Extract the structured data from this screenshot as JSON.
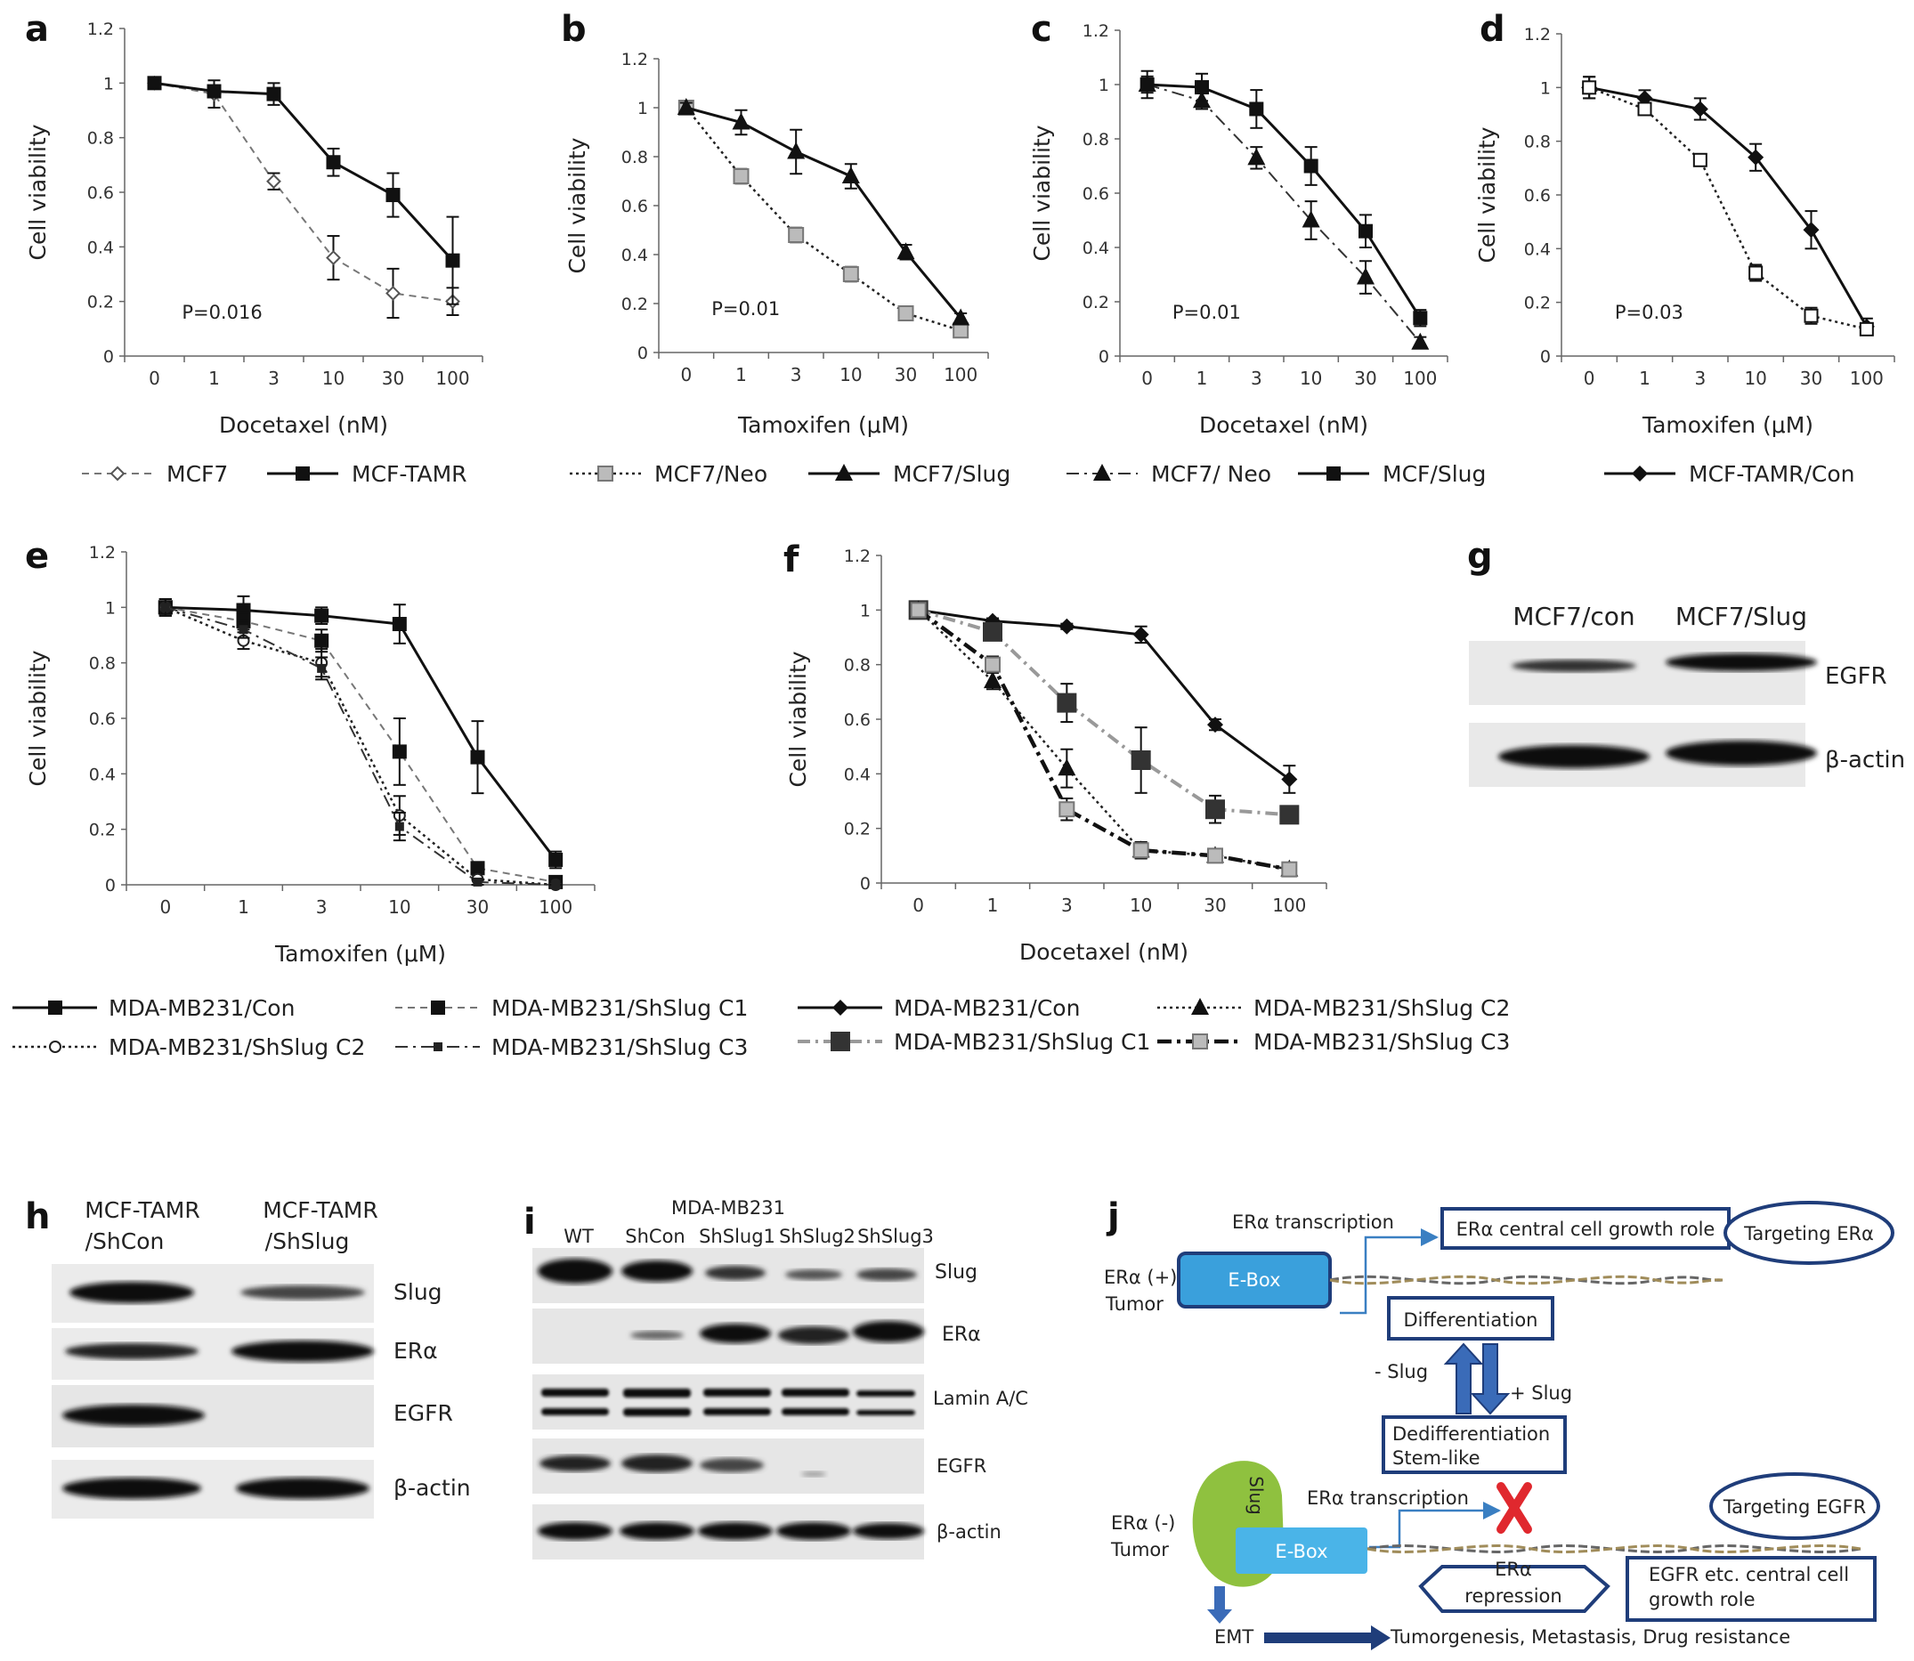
{
  "panel_letters": {
    "a": "a",
    "b": "b",
    "c": "c",
    "d": "d",
    "e": "e",
    "f": "f",
    "g": "g",
    "h": "h",
    "i": "i",
    "j": "j"
  },
  "chart_data": [
    {
      "id": "a",
      "type": "line",
      "ylabel": "Cell viability",
      "xlabel": "Docetaxel (nM)",
      "categories": [
        "0",
        "1",
        "3",
        "10",
        "30",
        "100"
      ],
      "ylim": [
        0,
        1.2
      ],
      "yticks": [
        "0",
        "0.2",
        "0.4",
        "0.6",
        "0.8",
        "1",
        "1.2"
      ],
      "annotation": "P=0.016",
      "series": [
        {
          "name": "MCF7",
          "style": "dashed",
          "marker": "diamond-open",
          "values": [
            1.0,
            0.96,
            0.64,
            0.36,
            0.23,
            0.2
          ],
          "errors": [
            0.02,
            0.05,
            0.03,
            0.08,
            0.09,
            0.05
          ]
        },
        {
          "name": "MCF-TAMR",
          "style": "solid",
          "marker": "square",
          "values": [
            1.0,
            0.97,
            0.96,
            0.71,
            0.59,
            0.35
          ],
          "errors": [
            0.02,
            0.02,
            0.04,
            0.05,
            0.08,
            0.16
          ]
        }
      ]
    },
    {
      "id": "b",
      "type": "line",
      "ylabel": "Cell viability",
      "xlabel": "Tamoxifen (μM)",
      "categories": [
        "0",
        "1",
        "3",
        "10",
        "30",
        "100"
      ],
      "ylim": [
        0,
        1.2
      ],
      "yticks": [
        "0",
        "0.2",
        "0.4",
        "0.6",
        "0.8",
        "1",
        "1.2"
      ],
      "annotation": "P=0.01",
      "series": [
        {
          "name": "MCF7/Neo",
          "style": "dotted",
          "marker": "square-gray",
          "values": [
            1.0,
            0.72,
            0.48,
            0.32,
            0.16,
            0.09
          ],
          "errors": [
            0.02,
            0.03,
            0.03,
            0.03,
            0.02,
            0.02
          ]
        },
        {
          "name": "MCF7/Slug",
          "style": "solid",
          "marker": "triangle",
          "values": [
            1.0,
            0.94,
            0.82,
            0.72,
            0.41,
            0.14
          ],
          "errors": [
            0.02,
            0.05,
            0.09,
            0.05,
            0.03,
            0.02
          ]
        }
      ]
    },
    {
      "id": "c",
      "type": "line",
      "ylabel": "Cell viability",
      "xlabel": "Docetaxel (nM)",
      "categories": [
        "0",
        "1",
        "3",
        "10",
        "30",
        "100"
      ],
      "ylim": [
        0,
        1.2
      ],
      "yticks": [
        "0",
        "0.2",
        "0.4",
        "0.6",
        "0.8",
        "1",
        "1.2"
      ],
      "annotation": "P=0.01",
      "series": [
        {
          "name": "MCF7/ Neo",
          "style": "dashdot",
          "marker": "triangle",
          "values": [
            1.0,
            0.94,
            0.73,
            0.5,
            0.29,
            0.05
          ],
          "errors": [
            0.03,
            0.03,
            0.04,
            0.07,
            0.06,
            0.02
          ]
        },
        {
          "name": "MCF/Slug",
          "style": "solid",
          "marker": "square",
          "values": [
            1.0,
            0.99,
            0.91,
            0.7,
            0.46,
            0.14
          ],
          "errors": [
            0.05,
            0.05,
            0.07,
            0.07,
            0.06,
            0.03
          ]
        }
      ]
    },
    {
      "id": "d",
      "type": "line",
      "ylabel": "Cell viability",
      "xlabel": "Tamoxifen (μM)",
      "categories": [
        "0",
        "1",
        "3",
        "10",
        "30",
        "100"
      ],
      "ylim": [
        0,
        1.2
      ],
      "yticks": [
        "0",
        "0.2",
        "0.4",
        "0.6",
        "0.8",
        "1",
        "1.2"
      ],
      "annotation": "P=0.03",
      "series": [
        {
          "name": "MCF-TAMR/Con",
          "style": "solid",
          "marker": "diamond",
          "values": [
            1.0,
            0.96,
            0.92,
            0.74,
            0.47,
            0.11
          ],
          "errors": [
            0.04,
            0.03,
            0.04,
            0.05,
            0.07,
            0.03
          ]
        },
        {
          "name": "",
          "style": "dotted",
          "marker": "square-open",
          "values": [
            1.0,
            0.92,
            0.73,
            0.31,
            0.15,
            0.1
          ],
          "errors": [
            0.04,
            0.02,
            0.02,
            0.03,
            0.03,
            0.02
          ]
        }
      ]
    },
    {
      "id": "e",
      "type": "line",
      "ylabel": "Cell viability",
      "xlabel": "Tamoxifen (μM)",
      "categories": [
        "0",
        "1",
        "3",
        "10",
        "30",
        "100"
      ],
      "ylim": [
        0,
        1.2
      ],
      "yticks": [
        "0",
        "0.2",
        "0.4",
        "0.6",
        "0.8",
        "1",
        "1.2"
      ],
      "annotation": "",
      "series": [
        {
          "name": "MDA-MB231/Con",
          "style": "solid",
          "marker": "square",
          "values": [
            1.0,
            0.99,
            0.97,
            0.94,
            0.46,
            0.09
          ],
          "errors": [
            0.03,
            0.05,
            0.03,
            0.07,
            0.13,
            0.03
          ]
        },
        {
          "name": "MDA-MB231/ShSlug C1",
          "style": "dashed",
          "marker": "square",
          "values": [
            1.0,
            0.95,
            0.88,
            0.48,
            0.06,
            0.01
          ],
          "errors": [
            0.03,
            0.03,
            0.04,
            0.12,
            0.02,
            0.01
          ]
        },
        {
          "name": "MDA-MB231/ShSlug C2",
          "style": "dotted",
          "marker": "circle-open",
          "values": [
            1.0,
            0.88,
            0.8,
            0.25,
            0.02,
            0.0
          ],
          "errors": [
            0.03,
            0.03,
            0.05,
            0.07,
            0.02,
            0.01
          ]
        },
        {
          "name": "MDA-MB231/ShSlug C3",
          "style": "dashdot",
          "marker": "square-small",
          "values": [
            1.0,
            0.92,
            0.78,
            0.21,
            0.01,
            0.0
          ],
          "errors": [
            0.03,
            0.03,
            0.04,
            0.05,
            0.01,
            0.01
          ]
        }
      ]
    },
    {
      "id": "f",
      "type": "line",
      "ylabel": "Cell viability",
      "xlabel": "Docetaxel (nM)",
      "categories": [
        "0",
        "1",
        "3",
        "10",
        "30",
        "100"
      ],
      "ylim": [
        0,
        1.2
      ],
      "yticks": [
        "0",
        "0.2",
        "0.4",
        "0.6",
        "0.8",
        "1",
        "1.2"
      ],
      "annotation": "",
      "series": [
        {
          "name": "MDA-MB231/Con",
          "style": "solid",
          "marker": "diamond",
          "values": [
            1.0,
            0.96,
            0.94,
            0.91,
            0.58,
            0.38
          ],
          "errors": [
            0.01,
            0.01,
            0.01,
            0.03,
            0.02,
            0.05
          ]
        },
        {
          "name": "MDA-MB231/ShSlug C1",
          "style": "dashdotgray",
          "marker": "square-big",
          "values": [
            1.0,
            0.92,
            0.66,
            0.45,
            0.27,
            0.25
          ],
          "errors": [
            0.02,
            0.02,
            0.07,
            0.12,
            0.05,
            0.02
          ]
        },
        {
          "name": "MDA-MB231/ShSlug C2",
          "style": "dotted",
          "marker": "triangle",
          "values": [
            1.0,
            0.74,
            0.42,
            0.12,
            0.1,
            0.05
          ],
          "errors": [
            0.02,
            0.03,
            0.07,
            0.03,
            0.02,
            0.01
          ]
        },
        {
          "name": "MDA-MB231/ShSlug C3",
          "style": "dashdotthick",
          "marker": "square-gray",
          "values": [
            1.0,
            0.8,
            0.27,
            0.12,
            0.1,
            0.05
          ],
          "errors": [
            0.02,
            0.03,
            0.04,
            0.03,
            0.02,
            0.01
          ]
        }
      ]
    }
  ],
  "blots": {
    "g": {
      "columns": [
        "MCF7/con",
        "MCF7/Slug"
      ],
      "rows": [
        "EGFR",
        "β-actin"
      ]
    },
    "h": {
      "columns": [
        "MCF-TAMR\n/ShCon",
        "MCF-TAMR\n/ShSlug"
      ],
      "col1_line1": "MCF-TAMR",
      "col1_line2": "/ShCon",
      "col2_line1": "MCF-TAMR",
      "col2_line2": "/ShSlug",
      "rows": [
        "Slug",
        "ERα",
        "EGFR",
        "β-actin"
      ]
    },
    "i": {
      "title": "MDA-MB231",
      "columns": [
        "WT",
        "ShCon",
        "ShSlug1",
        "ShSlug2",
        "ShSlug3"
      ],
      "rows": [
        "Slug",
        "ERα",
        "Lamin A/C",
        "EGFR",
        "β-actin"
      ]
    }
  },
  "diagram_j": {
    "era_transcription_top": "ERα transcription",
    "central_growth": "ERα central cell growth role",
    "targeting_era": "Targeting ERα",
    "era_pos_tumor_1": "ERα (+)",
    "era_pos_tumor_2": "Tumor",
    "ebox": "E-Box",
    "differentiation": "Differentiation",
    "minus_slug": "- Slug",
    "plus_slug": "+ Slug",
    "dediff_1": "Dedifferentiation",
    "dediff_2": "Stem-like",
    "era_transcription_bottom": "ERα transcription",
    "targeting_egfr": "Targeting EGFR",
    "era_neg_tumor_1": "ERα (-)",
    "era_neg_tumor_2": "Tumor",
    "slug_label": "Slug",
    "ebox2": "E-Box",
    "era_repression_1": "ERα",
    "era_repression_2": "repression",
    "egfr_growth_1": "EGFR  etc. central cell",
    "egfr_growth_2": "growth role",
    "emt": "EMT",
    "outcome": "Tumorgenesis, Metastasis, Drug resistance"
  },
  "colors": {
    "dark_blue": "#1f3d7a",
    "box_blue": "#3aa0dc",
    "slug_green": "#8fc13f",
    "red_x": "#e0282e"
  }
}
